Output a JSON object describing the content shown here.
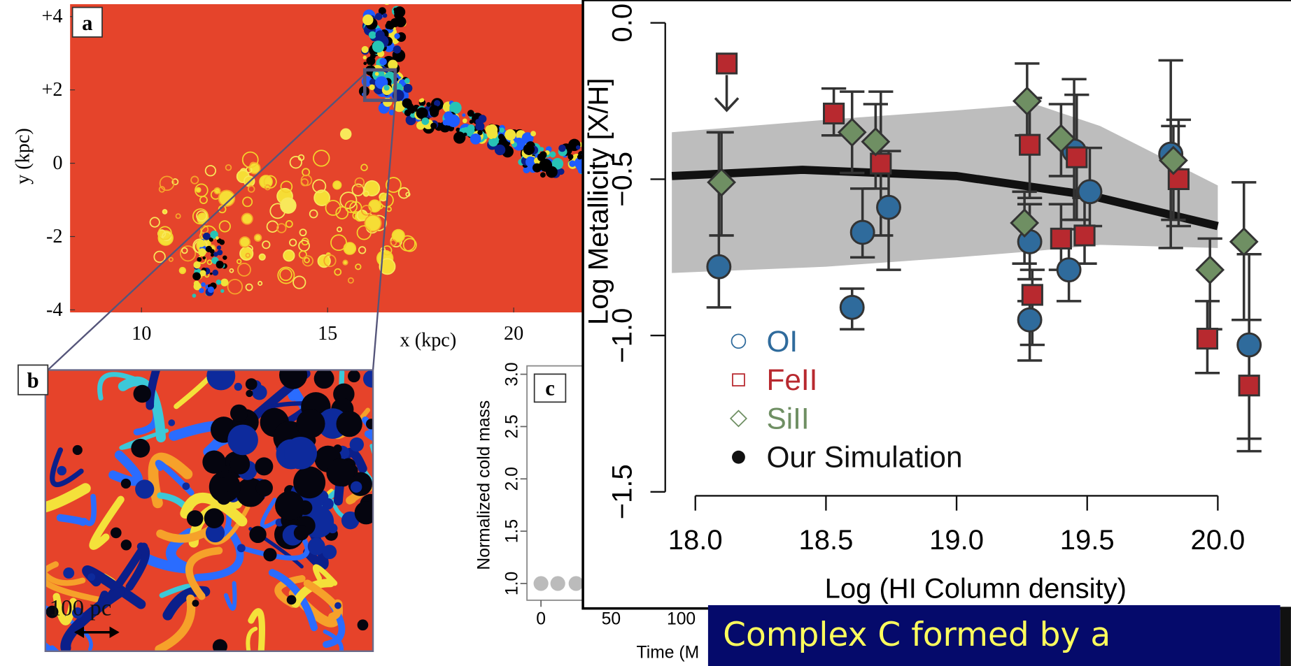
{
  "chart_data": [
    {
      "type": "scatter",
      "xlabel": "Log (HI Column density)",
      "ylabel": "Log Metallicity [X/H]",
      "xlim": [
        17.91,
        20.28
      ],
      "ylim": [
        -1.61,
        0.06
      ],
      "xticks": [
        {
          "value": 18,
          "label": "18.0"
        },
        {
          "value": 18.5,
          "label": "18.5"
        },
        {
          "value": 19,
          "label": "19.0"
        },
        {
          "value": 19.5,
          "label": "19.5"
        },
        {
          "value": 20,
          "label": "20.0"
        }
      ],
      "yticks": [
        {
          "value": 0,
          "label": "0.0"
        },
        {
          "value": -0.5,
          "label": "−0.5"
        },
        {
          "value": -1,
          "label": "−1.0"
        },
        {
          "value": -1.5,
          "label": "−1.5"
        }
      ],
      "legend": "lower left",
      "band": {
        "color": "#bdbdbd",
        "x": [
          17.91,
          18.5,
          19.0,
          19.3,
          19.55,
          20.0
        ],
        "upper": [
          -0.35,
          -0.31,
          -0.28,
          -0.26,
          -0.33,
          -0.52
        ],
        "lower": [
          -0.8,
          -0.78,
          -0.75,
          -0.73,
          -0.71,
          -0.72
        ]
      },
      "series": [
        {
          "name": "OI",
          "color": "#2f6b9c",
          "marker": "circle",
          "x": [
            18.09,
            18.6,
            18.64,
            18.74,
            19.28,
            19.28,
            19.43,
            19.45,
            19.51,
            19.82,
            20.12
          ],
          "values": [
            -0.78,
            -0.91,
            -0.67,
            -0.59,
            -0.7,
            -0.95,
            -0.79,
            -0.41,
            -0.54,
            -0.42,
            -1.03
          ],
          "upper": [
            -0.35,
            -0.85,
            -0.53,
            -0.41,
            -0.58,
            -0.89,
            -0.66,
            -0.18,
            -0.4,
            -0.12,
            -0.74
          ],
          "lower": [
            -0.91,
            -0.98,
            -0.75,
            -0.79,
            -0.82,
            -1.08,
            -0.89,
            -0.63,
            -0.65,
            -0.72,
            -1.33
          ]
        },
        {
          "name": "FeII",
          "color": "#b8292f",
          "marker": "square",
          "x": [
            18.12,
            18.53,
            18.71,
            19.28,
            19.29,
            19.4,
            19.46,
            19.49,
            19.85,
            19.96,
            20.12
          ],
          "values": [
            -0.13,
            -0.29,
            -0.45,
            -0.39,
            -0.87,
            -0.69,
            -0.43,
            -0.68,
            -0.5,
            -1.01,
            -1.16
          ],
          "upper": [
            null,
            -0.21,
            -0.22,
            -0.24,
            -0.79,
            -0.58,
            -0.23,
            -0.56,
            -0.31,
            -0.89,
            -0.95
          ],
          "lower": [
            null,
            -0.36,
            -0.68,
            -0.56,
            -1.03,
            -0.79,
            -0.63,
            -0.77,
            -0.65,
            -1.12,
            -1.37
          ],
          "upper_limits": [
            true,
            false,
            false,
            false,
            false,
            false,
            false,
            false,
            false,
            false,
            false
          ]
        },
        {
          "name": "SiII",
          "color": "#6f8f63",
          "marker": "diamond",
          "x": [
            18.1,
            18.6,
            18.69,
            19.27,
            19.26,
            19.4,
            19.83,
            19.97,
            20.1
          ],
          "values": [
            -0.51,
            -0.35,
            -0.38,
            -0.25,
            -0.64,
            -0.37,
            -0.44,
            -0.79,
            -0.7
          ],
          "upper": [
            -0.35,
            -0.22,
            -0.26,
            -0.13,
            -0.54,
            -0.26,
            -0.33,
            -0.69,
            -0.51
          ],
          "lower": [
            -0.68,
            -0.48,
            -0.53,
            -0.36,
            -0.77,
            -0.49,
            -0.63,
            -0.98,
            -0.95
          ]
        },
        {
          "name": "Our Simulation",
          "color": "#111111",
          "marker": "line",
          "x": [
            17.91,
            18.41,
            19.0,
            19.5,
            20.0
          ],
          "values": [
            -0.49,
            -0.47,
            -0.49,
            -0.55,
            -0.65
          ]
        }
      ]
    },
    {
      "type": "scatter",
      "label": "c",
      "xlabel": "Time (M",
      "ylabel": "Normalized cold mass",
      "xlim": [
        -10,
        260
      ],
      "ylim": [
        0.84,
        3.08
      ],
      "xticks": [
        0,
        50,
        100
      ],
      "yticks": [
        {
          "value": 1,
          "label": "1.0"
        },
        {
          "value": 1.5,
          "label": "1.5"
        },
        {
          "value": 2,
          "label": "2.0"
        },
        {
          "value": 2.5,
          "label": "2.5"
        },
        {
          "value": 3,
          "label": "3.0"
        }
      ],
      "series": [
        {
          "color": "#bbbbbb",
          "marker": "dot",
          "x": [
            0,
            12,
            25
          ],
          "values": [
            1,
            1,
            1
          ]
        }
      ]
    },
    {
      "type": "image",
      "label": "a",
      "xlabel": "x (kpc)",
      "ylabel": "y (kpc)",
      "xlim": [
        8.08,
        21.86
      ],
      "ylim": [
        -4.07,
        4.34
      ],
      "xticks": [
        10,
        15,
        20
      ],
      "yticks": [
        {
          "value": 4,
          "label": "+4"
        },
        {
          "value": 2,
          "label": "+2"
        },
        0,
        -2,
        -4
      ]
    }
  ],
  "panel_b": {
    "label": "b",
    "scale_label": "100 pc"
  },
  "text_box": {
    "lines": [
      "Complex C formed by a"
    ]
  }
}
